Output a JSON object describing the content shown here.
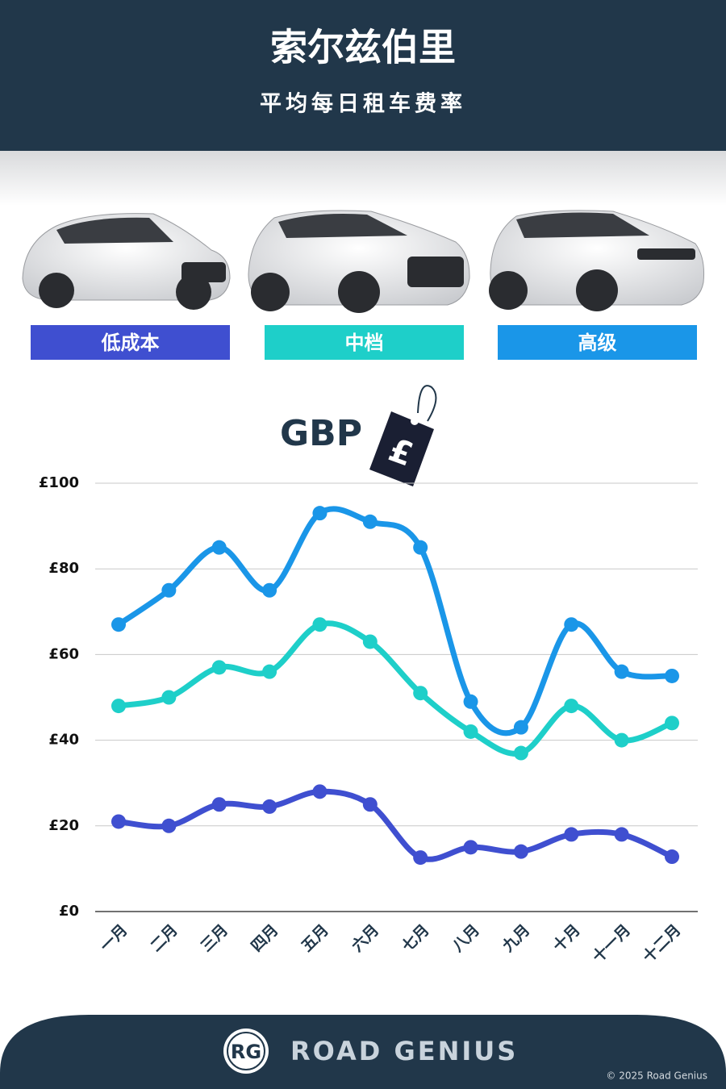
{
  "chart_data": {
    "type": "line",
    "title": "索尔兹伯里",
    "subtitle": "平均每日租车费率",
    "unit_label": "GBP",
    "unit_symbol": "£",
    "categories": [
      "一月",
      "二月",
      "三月",
      "四月",
      "五月",
      "六月",
      "七月",
      "八月",
      "九月",
      "十月",
      "十一月",
      "十二月"
    ],
    "series": [
      {
        "name": "低成本",
        "color": "#3f4fd0",
        "values": [
          21,
          20,
          25,
          24.5,
          28,
          25,
          12.6,
          15,
          14,
          18,
          18,
          12.8
        ]
      },
      {
        "name": "中档",
        "color": "#1ecfc9",
        "values": [
          48,
          50,
          57,
          56,
          67,
          63,
          51,
          42,
          37,
          48,
          40,
          44
        ]
      },
      {
        "name": "高级",
        "color": "#1a96e8",
        "values": [
          67,
          75,
          85,
          75,
          93,
          91,
          85,
          49,
          43,
          67,
          56,
          55
        ]
      }
    ],
    "ylim": [
      0,
      100
    ],
    "yticks": [
      {
        "value": 0,
        "label": "£0"
      },
      {
        "value": 20,
        "label": "£20"
      },
      {
        "value": 40,
        "label": "£40"
      },
      {
        "value": 60,
        "label": "£60"
      },
      {
        "value": 80,
        "label": "£80"
      },
      {
        "value": 100,
        "label": "£100"
      }
    ],
    "grid": true
  },
  "footer": {
    "logo_initials": "RG",
    "brand": "ROAD GENIUS",
    "copyright": "© 2025 Road Genius"
  }
}
